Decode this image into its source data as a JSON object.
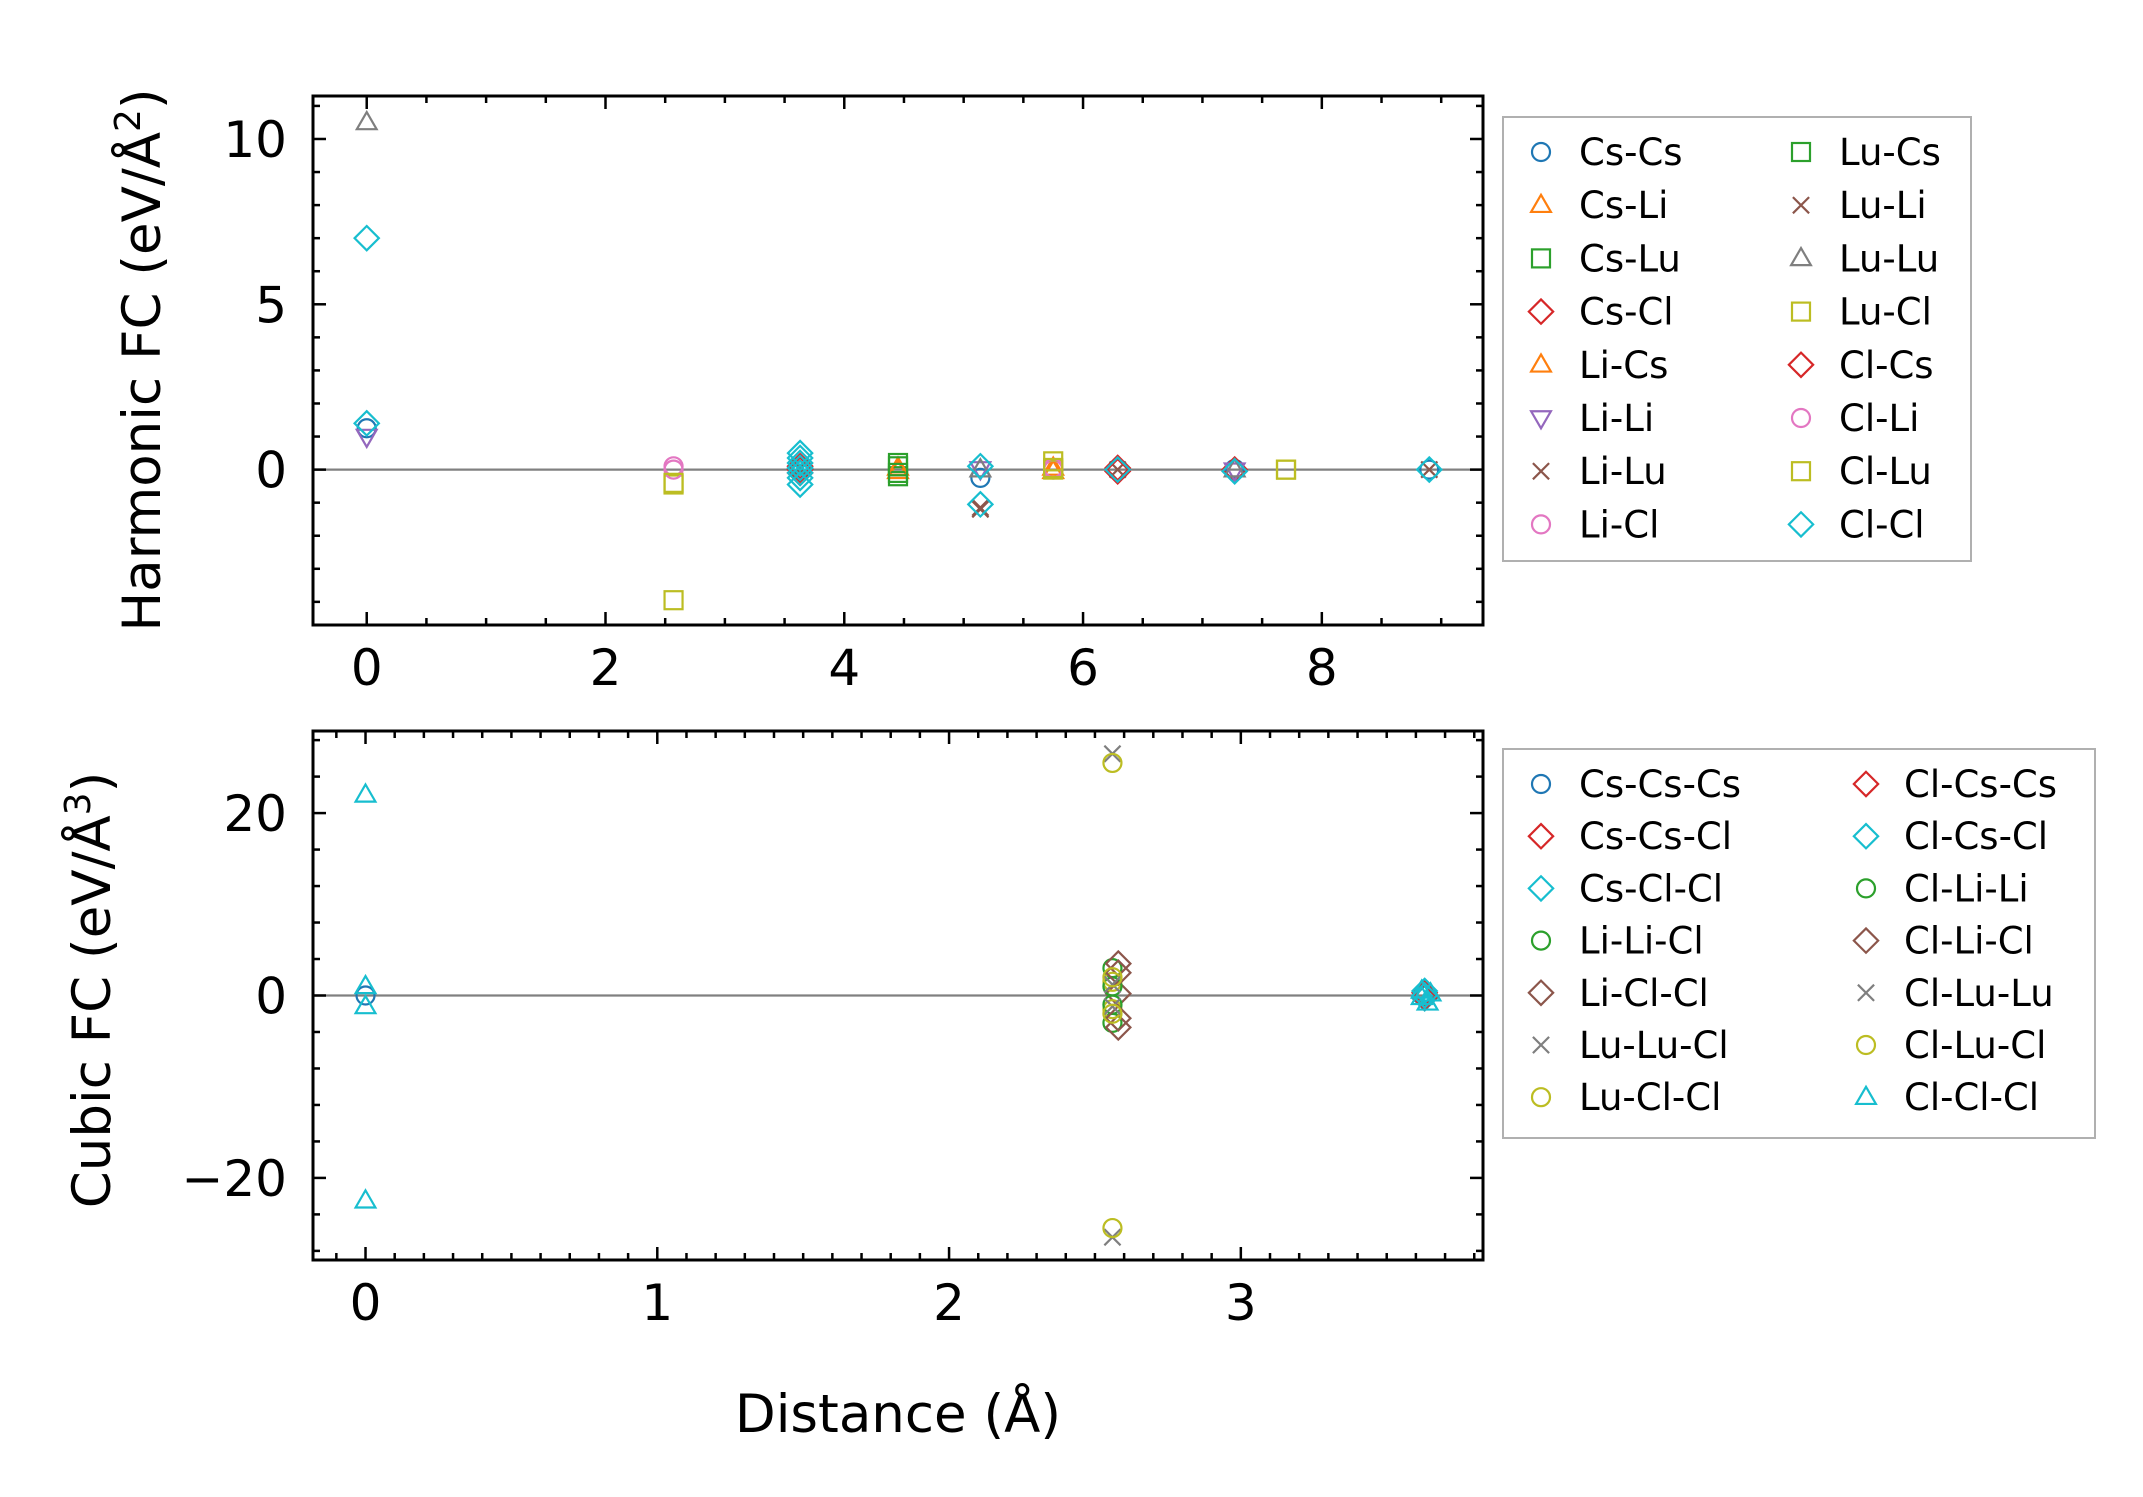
{
  "chart_data": [
    {
      "type": "scatter",
      "panel": "top",
      "ylabel": "Harmonic FC (eV/Å",
      "ylabel_sup": "2",
      "ylabel_close": ")",
      "xlim": [
        -0.45,
        9.35
      ],
      "ylim": [
        -4.7,
        11.3
      ],
      "xticks": [
        0,
        2,
        4,
        6,
        8
      ],
      "xtick_labels": [
        "0",
        "2",
        "4",
        "6",
        "8"
      ],
      "yticks": [
        0,
        5,
        10
      ],
      "ytick_labels": [
        "0",
        "5",
        "10"
      ],
      "zero_line": true,
      "legend_position": "right",
      "series": [
        {
          "name": "Cs-Cs",
          "marker": "o",
          "color": "#1f77b4",
          "points": [
            [
              0,
              1.25
            ],
            [
              5.14,
              -0.25
            ],
            [
              7.27,
              0.02
            ],
            [
              8.9,
              0.0
            ]
          ]
        },
        {
          "name": "Cs-Li",
          "marker": "^",
          "color": "#ff7f0e",
          "points": [
            [
              4.45,
              -0.05
            ],
            [
              5.75,
              0.05
            ]
          ]
        },
        {
          "name": "Cs-Lu",
          "marker": "s",
          "color": "#2ca02c",
          "points": [
            [
              4.45,
              0.2
            ],
            [
              4.45,
              -0.2
            ]
          ]
        },
        {
          "name": "Cs-Cl",
          "marker": "D",
          "color": "#d62728",
          "points": [
            [
              3.63,
              0.1
            ],
            [
              3.63,
              -0.1
            ],
            [
              6.29,
              0.05
            ],
            [
              7.27,
              0.0
            ]
          ]
        },
        {
          "name": "Li-Cs",
          "marker": "^",
          "color": "#ff7f0e",
          "points": [
            [
              4.45,
              0.05
            ],
            [
              5.75,
              -0.05
            ]
          ]
        },
        {
          "name": "Li-Li",
          "marker": "v",
          "color": "#9467bd",
          "points": [
            [
              0,
              1.0
            ],
            [
              5.14,
              0.02
            ],
            [
              7.27,
              -0.02
            ]
          ]
        },
        {
          "name": "Li-Lu",
          "marker": "x",
          "color": "#8c564b",
          "points": [
            [
              5.14,
              -1.15
            ],
            [
              3.63,
              0.0
            ],
            [
              6.29,
              0.0
            ],
            [
              8.9,
              0.0
            ]
          ]
        },
        {
          "name": "Li-Cl",
          "marker": "o",
          "color": "#e377c2",
          "points": [
            [
              2.57,
              0.1
            ],
            [
              5.75,
              0.0
            ]
          ]
        },
        {
          "name": "Lu-Cs",
          "marker": "s",
          "color": "#2ca02c",
          "points": [
            [
              4.45,
              0.1
            ],
            [
              4.45,
              -0.1
            ]
          ]
        },
        {
          "name": "Lu-Li",
          "marker": "x",
          "color": "#8c564b",
          "points": [
            [
              5.14,
              -1.2
            ],
            [
              3.63,
              0.05
            ]
          ]
        },
        {
          "name": "Lu-Lu",
          "marker": "^",
          "color": "#7f7f7f",
          "points": [
            [
              0,
              10.5
            ],
            [
              5.14,
              0.0
            ],
            [
              7.27,
              0.0
            ]
          ]
        },
        {
          "name": "Lu-Cl",
          "marker": "s",
          "color": "#bcbd22",
          "points": [
            [
              2.57,
              -3.95
            ],
            [
              2.57,
              -0.45
            ],
            [
              5.75,
              0.25
            ],
            [
              5.75,
              0.0
            ],
            [
              7.7,
              0.0
            ]
          ]
        },
        {
          "name": "Cl-Cs",
          "marker": "D",
          "color": "#d62728",
          "points": [
            [
              3.63,
              0.0
            ],
            [
              6.29,
              -0.05
            ]
          ]
        },
        {
          "name": "Cl-Li",
          "marker": "o",
          "color": "#e377c2",
          "points": [
            [
              2.57,
              0.0
            ],
            [
              5.75,
              0.05
            ]
          ]
        },
        {
          "name": "Cl-Lu",
          "marker": "s",
          "color": "#bcbd22",
          "points": [
            [
              2.57,
              -0.4
            ],
            [
              5.75,
              0.05
            ],
            [
              7.7,
              0.0
            ]
          ]
        },
        {
          "name": "Cl-Cl",
          "marker": "D",
          "color": "#17becf",
          "points": [
            [
              0,
              7.0
            ],
            [
              0,
              1.4
            ],
            [
              3.63,
              0.5
            ],
            [
              3.63,
              0.35
            ],
            [
              3.63,
              0.2
            ],
            [
              3.63,
              0.05
            ],
            [
              3.63,
              -0.1
            ],
            [
              3.63,
              -0.25
            ],
            [
              3.63,
              -0.45
            ],
            [
              5.14,
              0.1
            ],
            [
              5.14,
              -1.05
            ],
            [
              6.29,
              0.0
            ],
            [
              7.27,
              -0.05
            ],
            [
              8.9,
              0.0
            ]
          ]
        }
      ]
    },
    {
      "type": "scatter",
      "panel": "bottom",
      "ylabel": "Cubic FC (eV/Å",
      "ylabel_sup": "3",
      "ylabel_close": ")",
      "xlabel": "Distance (Å)",
      "xlim": [
        -0.18,
        3.83
      ],
      "ylim": [
        -29,
        29
      ],
      "xticks": [
        0,
        1,
        2,
        3
      ],
      "xtick_labels": [
        "0",
        "1",
        "2",
        "3"
      ],
      "yticks": [
        -20,
        0,
        20
      ],
      "ytick_labels": [
        "−20",
        "0",
        "20"
      ],
      "zero_line": true,
      "legend_position": "right",
      "series": [
        {
          "name": "Cs-Cs-Cs",
          "marker": "o",
          "color": "#1f77b4",
          "points": [
            [
              0,
              0.0
            ],
            [
              3.63,
              0.0
            ]
          ]
        },
        {
          "name": "Cs-Cs-Cl",
          "marker": "D",
          "color": "#d62728",
          "points": [
            [
              3.63,
              0.3
            ]
          ]
        },
        {
          "name": "Cs-Cl-Cl",
          "marker": "D",
          "color": "#17becf",
          "points": [
            [
              3.63,
              -0.3
            ],
            [
              3.63,
              0.5
            ]
          ]
        },
        {
          "name": "Li-Li-Cl",
          "marker": "o",
          "color": "#2ca02c",
          "points": [
            [
              2.56,
              3.0
            ],
            [
              2.56,
              -3.0
            ]
          ]
        },
        {
          "name": "Li-Cl-Cl",
          "marker": "D",
          "color": "#8c564b",
          "points": [
            [
              2.58,
              3.5
            ],
            [
              2.58,
              -3.5
            ],
            [
              2.58,
              0.2
            ]
          ]
        },
        {
          "name": "Lu-Lu-Cl",
          "marker": "x",
          "color": "#7f7f7f",
          "points": [
            [
              2.56,
              26.5
            ],
            [
              2.56,
              -26.5
            ]
          ]
        },
        {
          "name": "Lu-Cl-Cl",
          "marker": "o",
          "color": "#bcbd22",
          "points": [
            [
              2.56,
              25.5
            ],
            [
              2.56,
              -25.5
            ],
            [
              2.56,
              1.5
            ],
            [
              2.56,
              -1.5
            ]
          ]
        },
        {
          "name": "Cl-Cs-Cs",
          "marker": "D",
          "color": "#d62728",
          "points": [
            [
              3.63,
              -0.2
            ]
          ]
        },
        {
          "name": "Cl-Cs-Cl",
          "marker": "D",
          "color": "#17becf",
          "points": [
            [
              3.63,
              0.0
            ]
          ]
        },
        {
          "name": "Cl-Li-Li",
          "marker": "o",
          "color": "#2ca02c",
          "points": [
            [
              2.56,
              1.0
            ],
            [
              2.56,
              -1.0
            ]
          ]
        },
        {
          "name": "Cl-Li-Cl",
          "marker": "D",
          "color": "#8c564b",
          "points": [
            [
              2.58,
              2.5
            ],
            [
              2.58,
              -2.5
            ]
          ]
        },
        {
          "name": "Cl-Lu-Lu",
          "marker": "x",
          "color": "#7f7f7f",
          "points": [
            [
              2.56,
              -1.2
            ],
            [
              2.56,
              1.2
            ]
          ]
        },
        {
          "name": "Cl-Lu-Cl",
          "marker": "o",
          "color": "#bcbd22",
          "points": [
            [
              2.56,
              2.0
            ],
            [
              2.56,
              -2.0
            ]
          ]
        },
        {
          "name": "Cl-Cl-Cl",
          "marker": "^",
          "color": "#17becf",
          "points": [
            [
              0,
              22.0
            ],
            [
              0,
              -22.5
            ],
            [
              0,
              1.0
            ],
            [
              0,
              -1.2
            ],
            [
              3.62,
              0.5
            ],
            [
              3.62,
              -0.2
            ],
            [
              3.64,
              -0.8
            ],
            [
              3.65,
              0.2
            ]
          ]
        }
      ]
    }
  ]
}
